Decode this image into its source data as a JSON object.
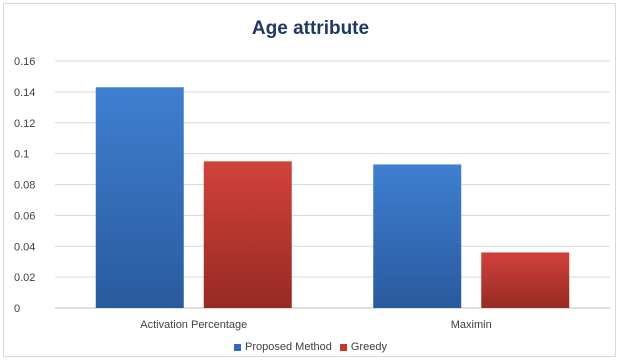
{
  "chart_data": {
    "type": "bar",
    "title": "Age attribute",
    "categories": [
      "Activation Percentage",
      "Maximin"
    ],
    "series": [
      {
        "name": "Proposed Method",
        "values": [
          0.143,
          0.093
        ],
        "color": "#2e6bc0",
        "color_light": "#3f7fd1",
        "color_dark": "#2a5a9e"
      },
      {
        "name": "Greedy",
        "values": [
          0.095,
          0.036
        ],
        "color": "#c0392b",
        "color_light": "#d0423a",
        "color_dark": "#982a24"
      }
    ],
    "yticks": [
      "0",
      "0.02",
      "0.04",
      "0.06",
      "0.08",
      "0.1",
      "0.12",
      "0.14",
      "0.16"
    ],
    "ylim": [
      0,
      0.16
    ],
    "grid": true,
    "legend_position": "bottom"
  }
}
